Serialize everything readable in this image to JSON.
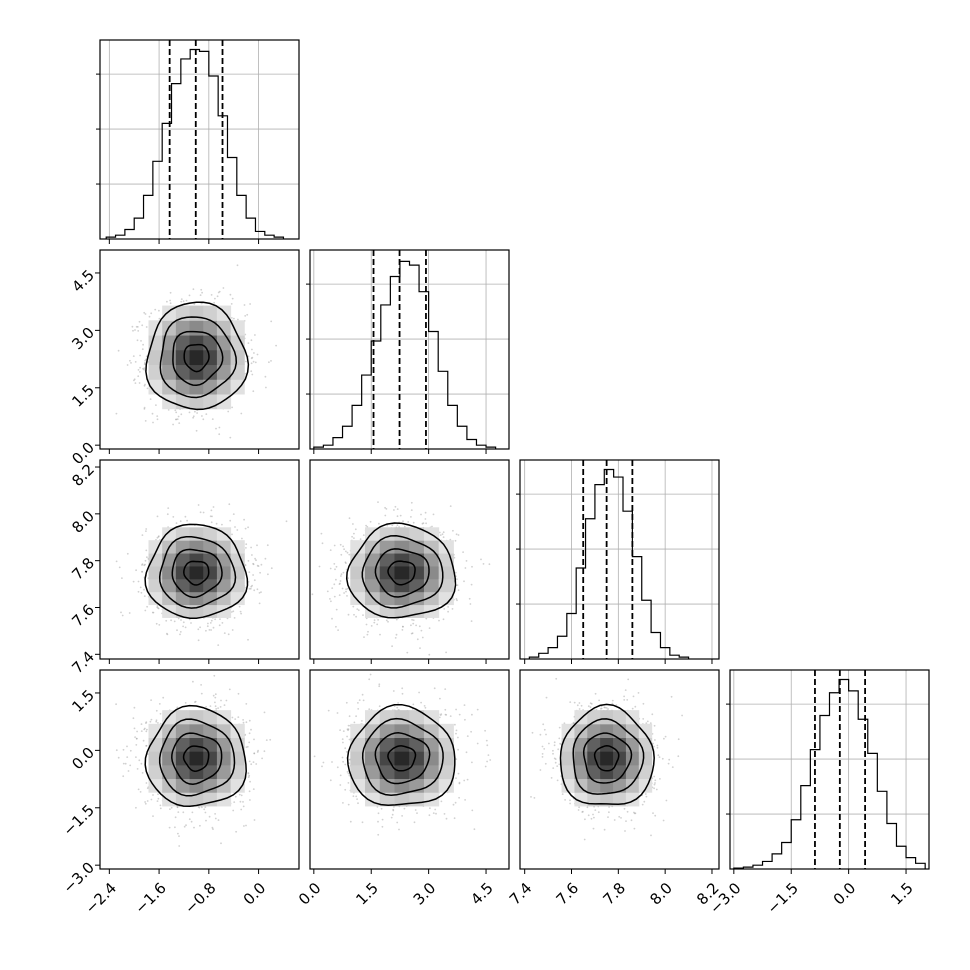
{
  "chart_data": {
    "type": "corner",
    "title": "",
    "grid": true,
    "colors": {
      "background": "#ffffff",
      "frame": "#000000",
      "grid": "#b0b0b0",
      "scatter": "#9a9a9a",
      "contour": "#000000"
    },
    "params": [
      {
        "name": "",
        "lim": [
          -2.55,
          0.65
        ],
        "ticks": [
          -2.4,
          -1.6,
          -0.8,
          0.0
        ],
        "tick_labels": [
          "−2.4",
          "−1.6",
          "−0.8",
          "0.0"
        ],
        "mean": -1.0,
        "std": 0.4
      },
      {
        "name": "",
        "lim": [
          -0.1,
          5.1
        ],
        "ticks": [
          0.0,
          1.5,
          3.0,
          4.5
        ],
        "tick_labels": [
          "0.0",
          "1.5",
          "3.0",
          "4.5"
        ],
        "mean": 2.3,
        "std": 0.7
      },
      {
        "name": "",
        "lim": [
          7.38,
          8.23
        ],
        "ticks": [
          7.4,
          7.6,
          7.8,
          8.0,
          8.2
        ],
        "tick_labels": [
          "7.4",
          "7.6",
          "7.8",
          "8.0",
          "8.2"
        ],
        "mean": 7.75,
        "std": 0.1
      },
      {
        "name": "",
        "lim": [
          -3.1,
          2.1
        ],
        "ticks": [
          -3.0,
          -1.5,
          0.0,
          1.5
        ],
        "tick_labels": [
          "−3.0",
          "−1.5",
          "0.0",
          "1.5"
        ],
        "mean": -0.2,
        "std": 0.65
      }
    ],
    "quantiles": [
      [
        -1.43,
        -1.01,
        -0.58
      ],
      [
        1.56,
        2.24,
        2.93
      ],
      [
        7.65,
        7.75,
        7.86
      ],
      [
        -0.88,
        -0.23,
        0.43
      ]
    ],
    "histograms": [
      {
        "edges": [
          -2.45,
          -2.3,
          -2.15,
          -2.0,
          -1.85,
          -1.7,
          -1.55,
          -1.4,
          -1.25,
          -1.1,
          -0.95,
          -0.8,
          -0.65,
          -0.5,
          -0.35,
          -0.2,
          -0.05,
          0.1,
          0.25,
          0.4
        ],
        "counts": [
          0.01,
          0.02,
          0.05,
          0.11,
          0.23,
          0.41,
          0.61,
          0.82,
          0.95,
          1.0,
          0.99,
          0.86,
          0.65,
          0.43,
          0.23,
          0.11,
          0.04,
          0.02,
          0.01
        ]
      },
      {
        "edges": [
          0.0,
          0.25,
          0.5,
          0.75,
          1.0,
          1.25,
          1.5,
          1.75,
          2.0,
          2.25,
          2.5,
          2.75,
          3.0,
          3.25,
          3.5,
          3.75,
          4.0,
          4.25,
          4.5,
          4.75
        ],
        "counts": [
          0.01,
          0.02,
          0.06,
          0.12,
          0.23,
          0.39,
          0.57,
          0.76,
          0.91,
          0.99,
          0.97,
          0.83,
          0.62,
          0.41,
          0.23,
          0.12,
          0.05,
          0.02,
          0.01
        ]
      },
      {
        "edges": [
          7.42,
          7.46,
          7.5,
          7.54,
          7.58,
          7.62,
          7.66,
          7.7,
          7.74,
          7.78,
          7.82,
          7.86,
          7.9,
          7.94,
          7.98,
          8.02,
          8.06,
          8.1
        ],
        "counts": [
          0.01,
          0.03,
          0.06,
          0.12,
          0.24,
          0.48,
          0.74,
          0.92,
          1.0,
          0.96,
          0.78,
          0.54,
          0.31,
          0.14,
          0.06,
          0.02,
          0.01
        ]
      },
      {
        "edges": [
          -3.0,
          -2.75,
          -2.5,
          -2.25,
          -2.0,
          -1.75,
          -1.5,
          -1.25,
          -1.0,
          -0.75,
          -0.5,
          -0.25,
          0.0,
          0.25,
          0.5,
          0.75,
          1.0,
          1.25,
          1.5,
          1.75,
          2.0
        ],
        "counts": [
          0.005,
          0.01,
          0.02,
          0.04,
          0.08,
          0.14,
          0.26,
          0.44,
          0.63,
          0.81,
          0.93,
          1.0,
          0.94,
          0.79,
          0.61,
          0.41,
          0.24,
          0.12,
          0.06,
          0.03
        ]
      }
    ]
  }
}
